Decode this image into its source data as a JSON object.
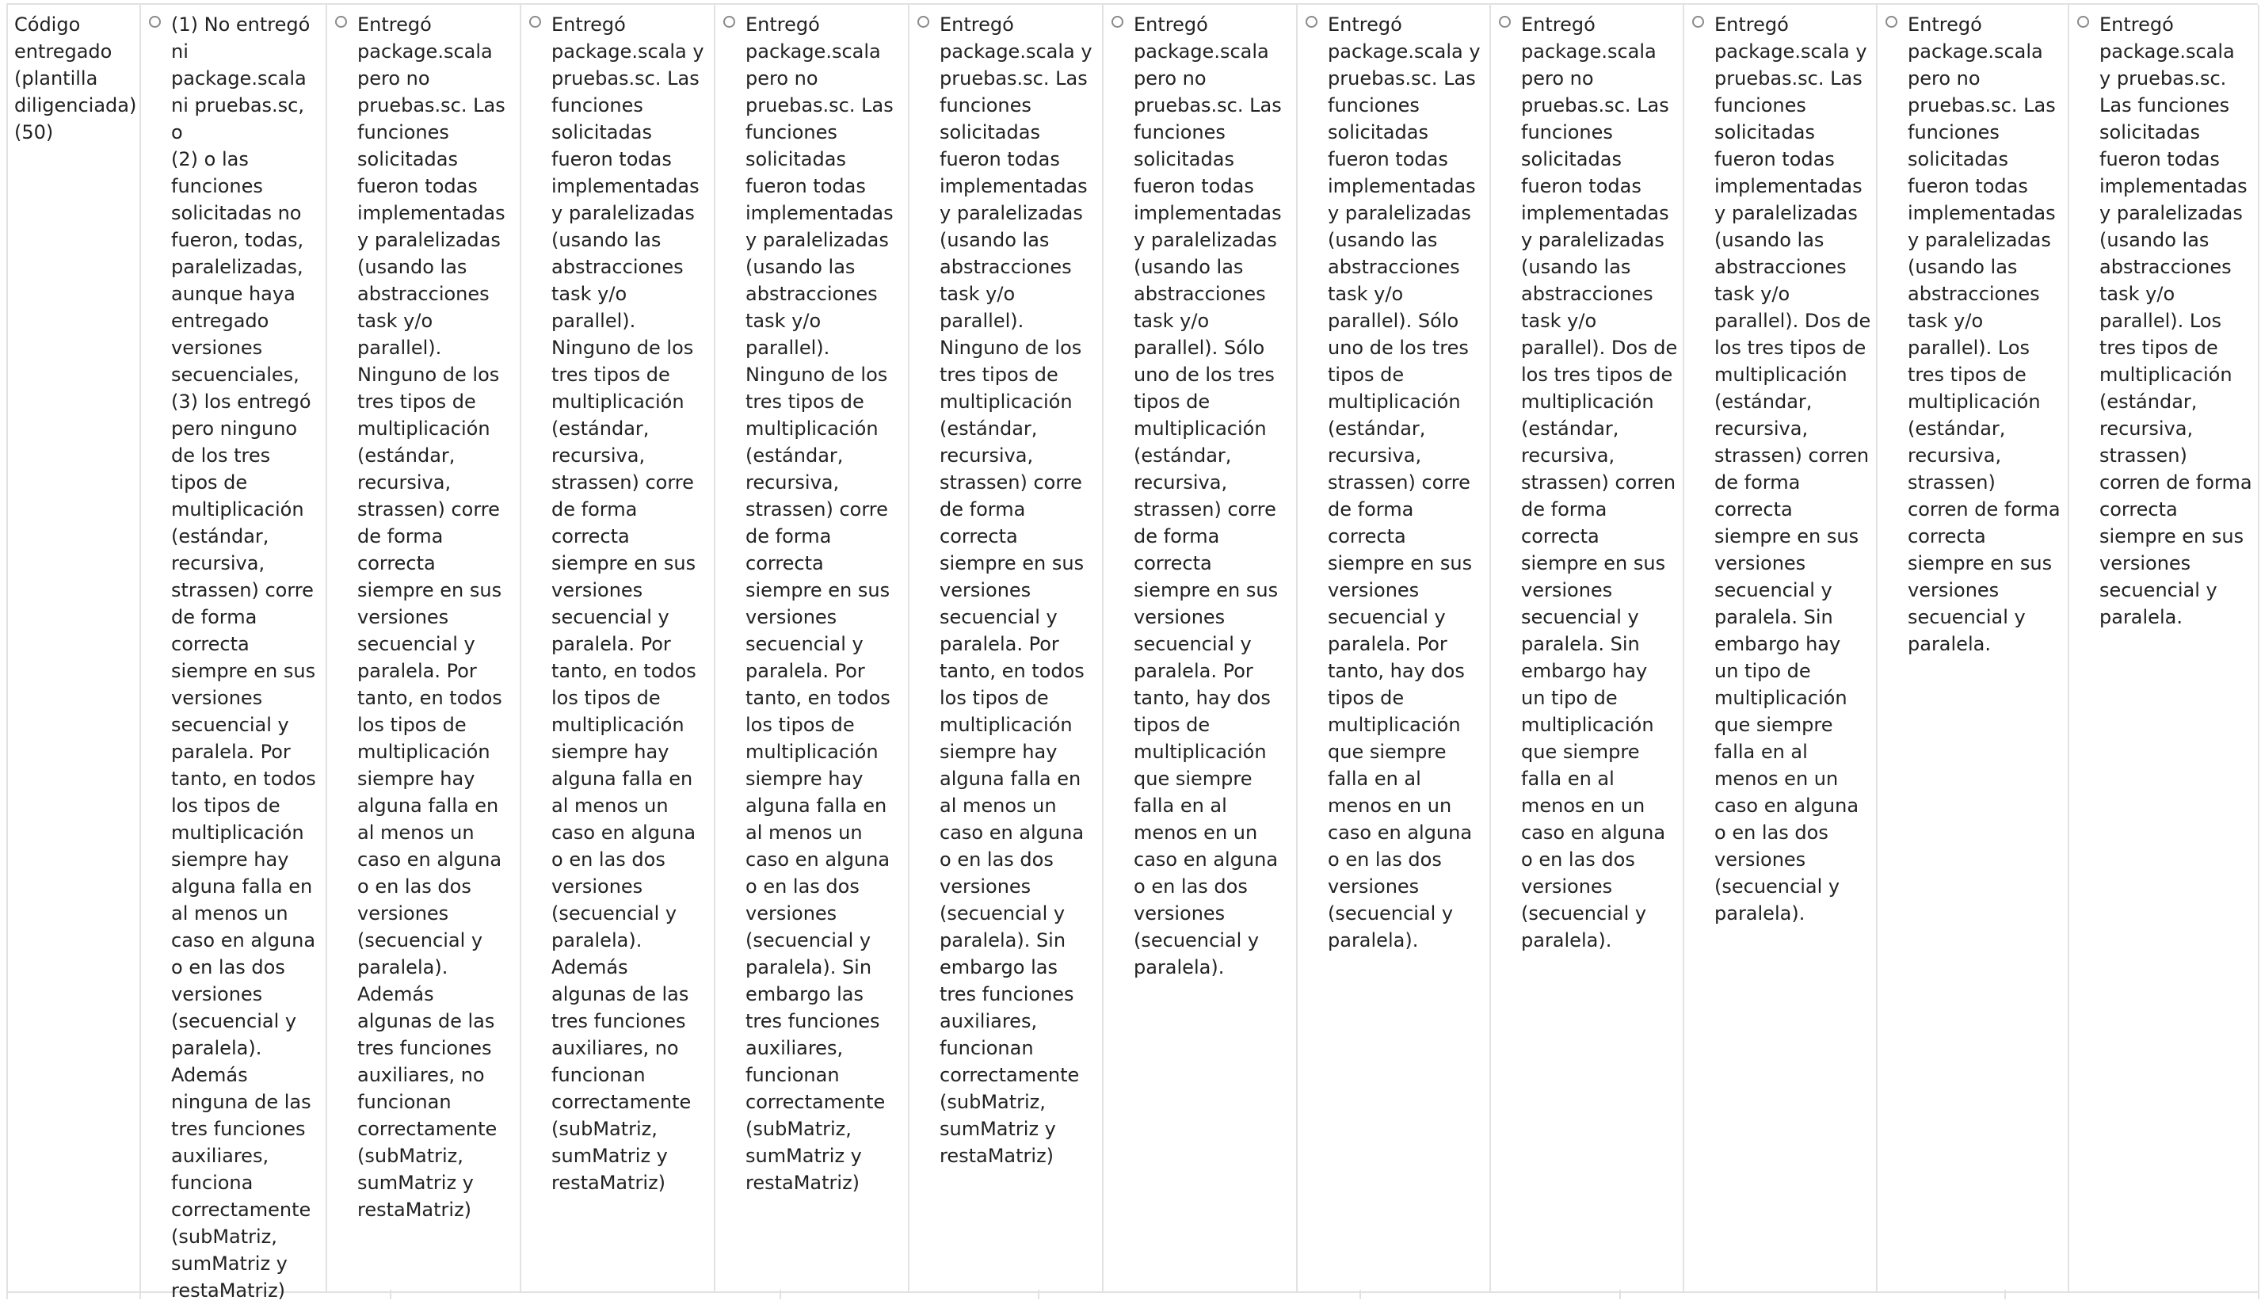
{
  "criterion": {
    "label": "Código\nentregado\n(plantilla\ndiligenciada)\n(50)"
  },
  "options": [
    {
      "text": "(1) No entregó\nni\npackage.scala\nni pruebas.sc, o\n(2) o las\nfunciones\nsolicitadas no\nfueron, todas,\nparalelizadas,\naunque haya\nentregado\nversiones\nsecuenciales,\n(3) los entregó\npero ninguno\nde los tres\ntipos de\nmultiplicación\n(estándar,\nrecursiva,\nstrassen) corre\nde forma\ncorrecta\nsiempre en sus\nversiones\nsecuencial y\nparalela. Por\ntanto, en todos\nlos tipos de\nmultiplicación\nsiempre hay\nalguna falla en\nal menos un\ncaso en alguna\no en las dos\nversiones\n(secuencial y\nparalela).\nAdemás\nninguna de las\ntres funciones\nauxiliares,\nfunciona\ncorrectamente\n(subMatriz,\nsumMatriz y\nrestaMatriz)"
    },
    {
      "text": "Entregó\npackage.scala\npero no\npruebas.sc. Las\nfunciones\nsolicitadas\nfueron todas\nimplementadas\ny paralelizadas\n(usando las\nabstracciones\ntask y/o\nparallel).\nNinguno de los\ntres tipos de\nmultiplicación\n(estándar,\nrecursiva,\nstrassen) corre\nde forma\ncorrecta\nsiempre en sus\nversiones\nsecuencial y\nparalela. Por\ntanto, en todos\nlos tipos de\nmultiplicación\nsiempre hay\nalguna falla en\nal menos un\ncaso en alguna\no en las dos\nversiones\n(secuencial y\nparalela).\nAdemás\nalgunas de las\ntres funciones\nauxiliares, no\nfuncionan\ncorrectamente\n(subMatriz,\nsumMatriz y\nrestaMatriz)"
    },
    {
      "text": "Entregó\npackage.scala y\npruebas.sc. Las\nfunciones\nsolicitadas\nfueron todas\nimplementadas\ny paralelizadas\n(usando las\nabstracciones\ntask y/o\nparallel).\nNinguno de los\ntres tipos de\nmultiplicación\n(estándar,\nrecursiva,\nstrassen) corre\nde forma\ncorrecta\nsiempre en sus\nversiones\nsecuencial y\nparalela. Por\ntanto, en todos\nlos tipos de\nmultiplicación\nsiempre hay\nalguna falla en\nal menos un\ncaso en alguna\no en las dos\nversiones\n(secuencial y\nparalela).\nAdemás\nalgunas de las\ntres funciones\nauxiliares, no\nfuncionan\ncorrectamente\n(subMatriz,\nsumMatriz y\nrestaMatriz)"
    },
    {
      "text": "Entregó\npackage.scala\npero no\npruebas.sc. Las\nfunciones\nsolicitadas\nfueron todas\nimplementadas\ny paralelizadas\n(usando las\nabstracciones\ntask y/o\nparallel).\nNinguno de los\ntres tipos de\nmultiplicación\n(estándar,\nrecursiva,\nstrassen) corre\nde forma\ncorrecta\nsiempre en sus\nversiones\nsecuencial y\nparalela. Por\ntanto, en todos\nlos tipos de\nmultiplicación\nsiempre hay\nalguna falla en\nal menos un\ncaso en alguna\no en las dos\nversiones\n(secuencial y\nparalela). Sin\nembargo las\ntres funciones\nauxiliares,\nfuncionan\ncorrectamente\n(subMatriz,\nsumMatriz y\nrestaMatriz)"
    },
    {
      "text": "Entregó\npackage.scala y\npruebas.sc. Las\nfunciones\nsolicitadas\nfueron todas\nimplementadas\ny paralelizadas\n(usando las\nabstracciones\ntask y/o\nparallel).\nNinguno de los\ntres tipos de\nmultiplicación\n(estándar,\nrecursiva,\nstrassen) corre\nde forma\ncorrecta\nsiempre en sus\nversiones\nsecuencial y\nparalela. Por\ntanto, en todos\nlos tipos de\nmultiplicación\nsiempre hay\nalguna falla en\nal menos un\ncaso en alguna\no en las dos\nversiones\n(secuencial y\nparalela). Sin\nembargo las\ntres funciones\nauxiliares,\nfuncionan\ncorrectamente\n(subMatriz,\nsumMatriz y\nrestaMatriz)"
    },
    {
      "text": "Entregó\npackage.scala\npero no\npruebas.sc. Las\nfunciones\nsolicitadas\nfueron todas\nimplementadas\ny paralelizadas\n(usando las\nabstracciones\ntask y/o\nparallel). Sólo\nuno de los tres\ntipos de\nmultiplicación\n(estándar,\nrecursiva,\nstrassen) corre\nde forma\ncorrecta\nsiempre en sus\nversiones\nsecuencial y\nparalela. Por\ntanto, hay dos\ntipos de\nmultiplicación\nque siempre\nfalla en al\nmenos en un\ncaso en alguna\no en las dos\nversiones\n(secuencial y\nparalela)."
    },
    {
      "text": "Entregó\npackage.scala y\npruebas.sc. Las\nfunciones\nsolicitadas\nfueron todas\nimplementadas\ny paralelizadas\n(usando las\nabstracciones\ntask y/o\nparallel). Sólo\nuno de los tres\ntipos de\nmultiplicación\n(estándar,\nrecursiva,\nstrassen) corre\nde forma\ncorrecta\nsiempre en sus\nversiones\nsecuencial y\nparalela. Por\ntanto, hay dos\ntipos de\nmultiplicación\nque siempre\nfalla en al\nmenos en un\ncaso en alguna\no en las dos\nversiones\n(secuencial y\nparalela)."
    },
    {
      "text": "Entregó\npackage.scala\npero no\npruebas.sc. Las\nfunciones\nsolicitadas\nfueron todas\nimplementadas\ny paralelizadas\n(usando las\nabstracciones\ntask y/o\nparallel). Dos de\nlos tres tipos de\nmultiplicación\n(estándar,\nrecursiva,\nstrassen) corren\nde forma\ncorrecta\nsiempre en sus\nversiones\nsecuencial y\nparalela. Sin\nembargo hay\nun tipo de\nmultiplicación\nque siempre\nfalla en al\nmenos en un\ncaso en alguna\no en las dos\nversiones\n(secuencial y\nparalela)."
    },
    {
      "text": "Entregó\npackage.scala y\npruebas.sc. Las\nfunciones\nsolicitadas\nfueron todas\nimplementadas\ny paralelizadas\n(usando las\nabstracciones\ntask y/o\nparallel). Dos de\nlos tres tipos de\nmultiplicación\n(estándar,\nrecursiva,\nstrassen) corren\nde forma\ncorrecta\nsiempre en sus\nversiones\nsecuencial y\nparalela. Sin\nembargo hay\nun tipo de\nmultiplicación\nque siempre\nfalla en al\nmenos en un\ncaso en alguna\no en las dos\nversiones\n(secuencial y\nparalela)."
    },
    {
      "text": "Entregó\npackage.scala\npero no\npruebas.sc. Las\nfunciones\nsolicitadas\nfueron todas\nimplementadas\ny paralelizadas\n(usando las\nabstracciones\ntask y/o\nparallel). Los\ntres tipos de\nmultiplicación\n(estándar,\nrecursiva,\nstrassen)\ncorren de forma\ncorrecta\nsiempre en sus\nversiones\nsecuencial y\nparalela."
    },
    {
      "text": "Entregó\npackage.scala\ny pruebas.sc.\nLas funciones\nsolicitadas\nfueron todas\nimplementadas\ny paralelizadas\n(usando las\nabstracciones\ntask y/o\nparallel). Los\ntres tipos de\nmultiplicación\n(estándar,\nrecursiva,\nstrassen)\ncorren de forma\ncorrecta\nsiempre en sus\nversiones\nsecuencial y\nparalela."
    }
  ]
}
